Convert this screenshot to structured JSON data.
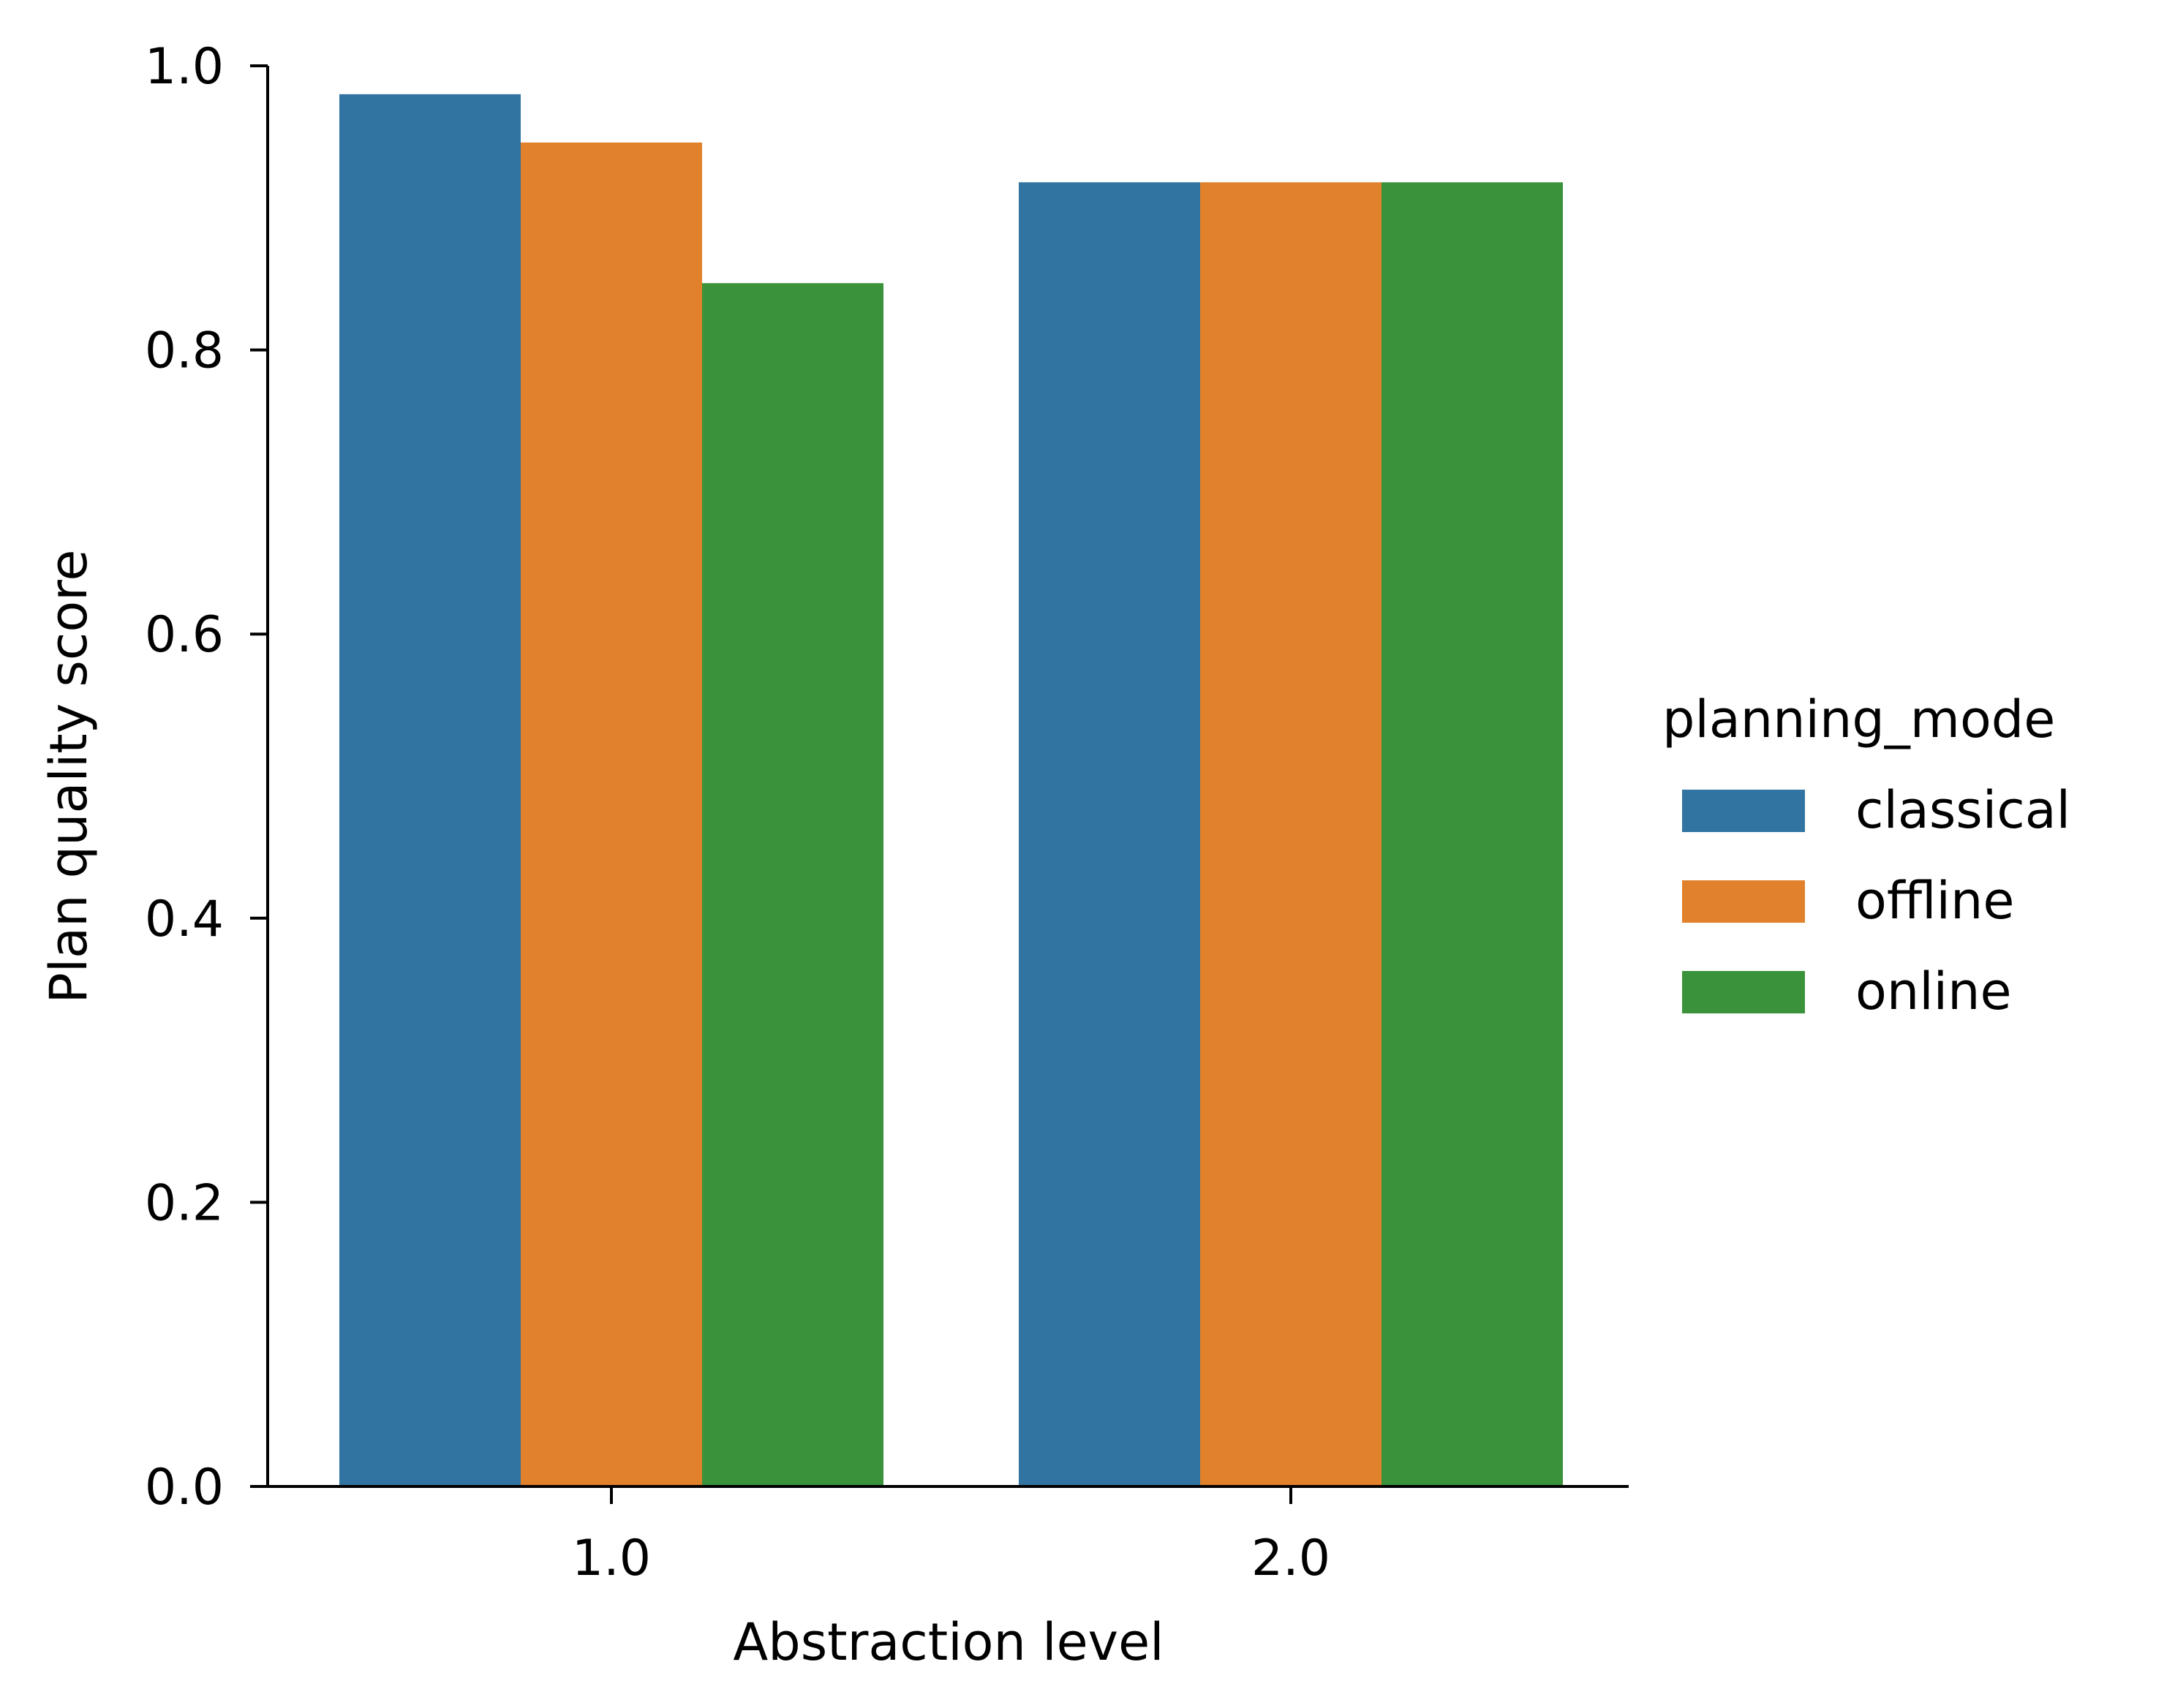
{
  "chart_data": {
    "type": "bar",
    "categories": [
      "1.0",
      "2.0"
    ],
    "series": [
      {
        "name": "classical",
        "values": [
          0.98,
          0.918
        ]
      },
      {
        "name": "offline",
        "values": [
          0.946,
          0.918
        ]
      },
      {
        "name": "online",
        "values": [
          0.847,
          0.918
        ]
      }
    ],
    "colors": [
      "#3274a1",
      "#e1812c",
      "#3a923a"
    ],
    "xlabel": "Abstraction level",
    "ylabel": "Plan quality score",
    "ylim": [
      0,
      1.0
    ],
    "yticks": [
      "0.0",
      "0.2",
      "0.4",
      "0.6",
      "0.8",
      "1.0"
    ],
    "legend": {
      "title": "planning_mode",
      "placement": "right"
    },
    "grid": false
  }
}
